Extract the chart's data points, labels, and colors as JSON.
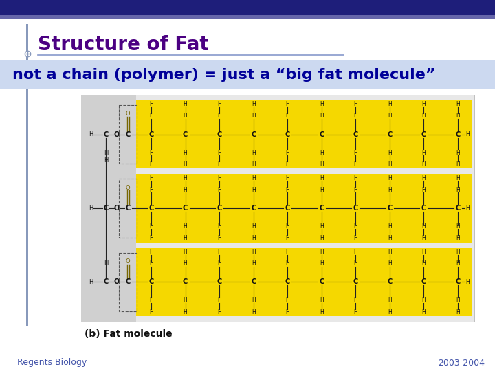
{
  "header_color": "#1e1e7a",
  "header_stripe_color": "#6666aa",
  "title_text": "Structure of Fat",
  "title_color": "#4b0082",
  "title_fontsize": 20,
  "title_underline_color": "#8899cc",
  "banner_text": "not a chain (polymer) = just a “big fat molecule”",
  "banner_bg": "#ccd9f0",
  "banner_text_color": "#000099",
  "banner_fontsize": 16,
  "left_bar_color": "#8899bb",
  "diagram_outer_bg": "#e8e8e8",
  "glycerol_bg": "#d0d0d0",
  "fatty_acid_bg": "#f5d800",
  "label_fat_molecule": "(b) Fat molecule",
  "label_fontsize": 10,
  "footer_left": "Regents Biology",
  "footer_right": "2003-2004",
  "footer_color": "#4455aa",
  "footer_fontsize": 9,
  "bg_color": "#ffffff",
  "mol_text_color": "#111111",
  "mol_bond_color": "#222222",
  "ester_bond_color": "#776600"
}
